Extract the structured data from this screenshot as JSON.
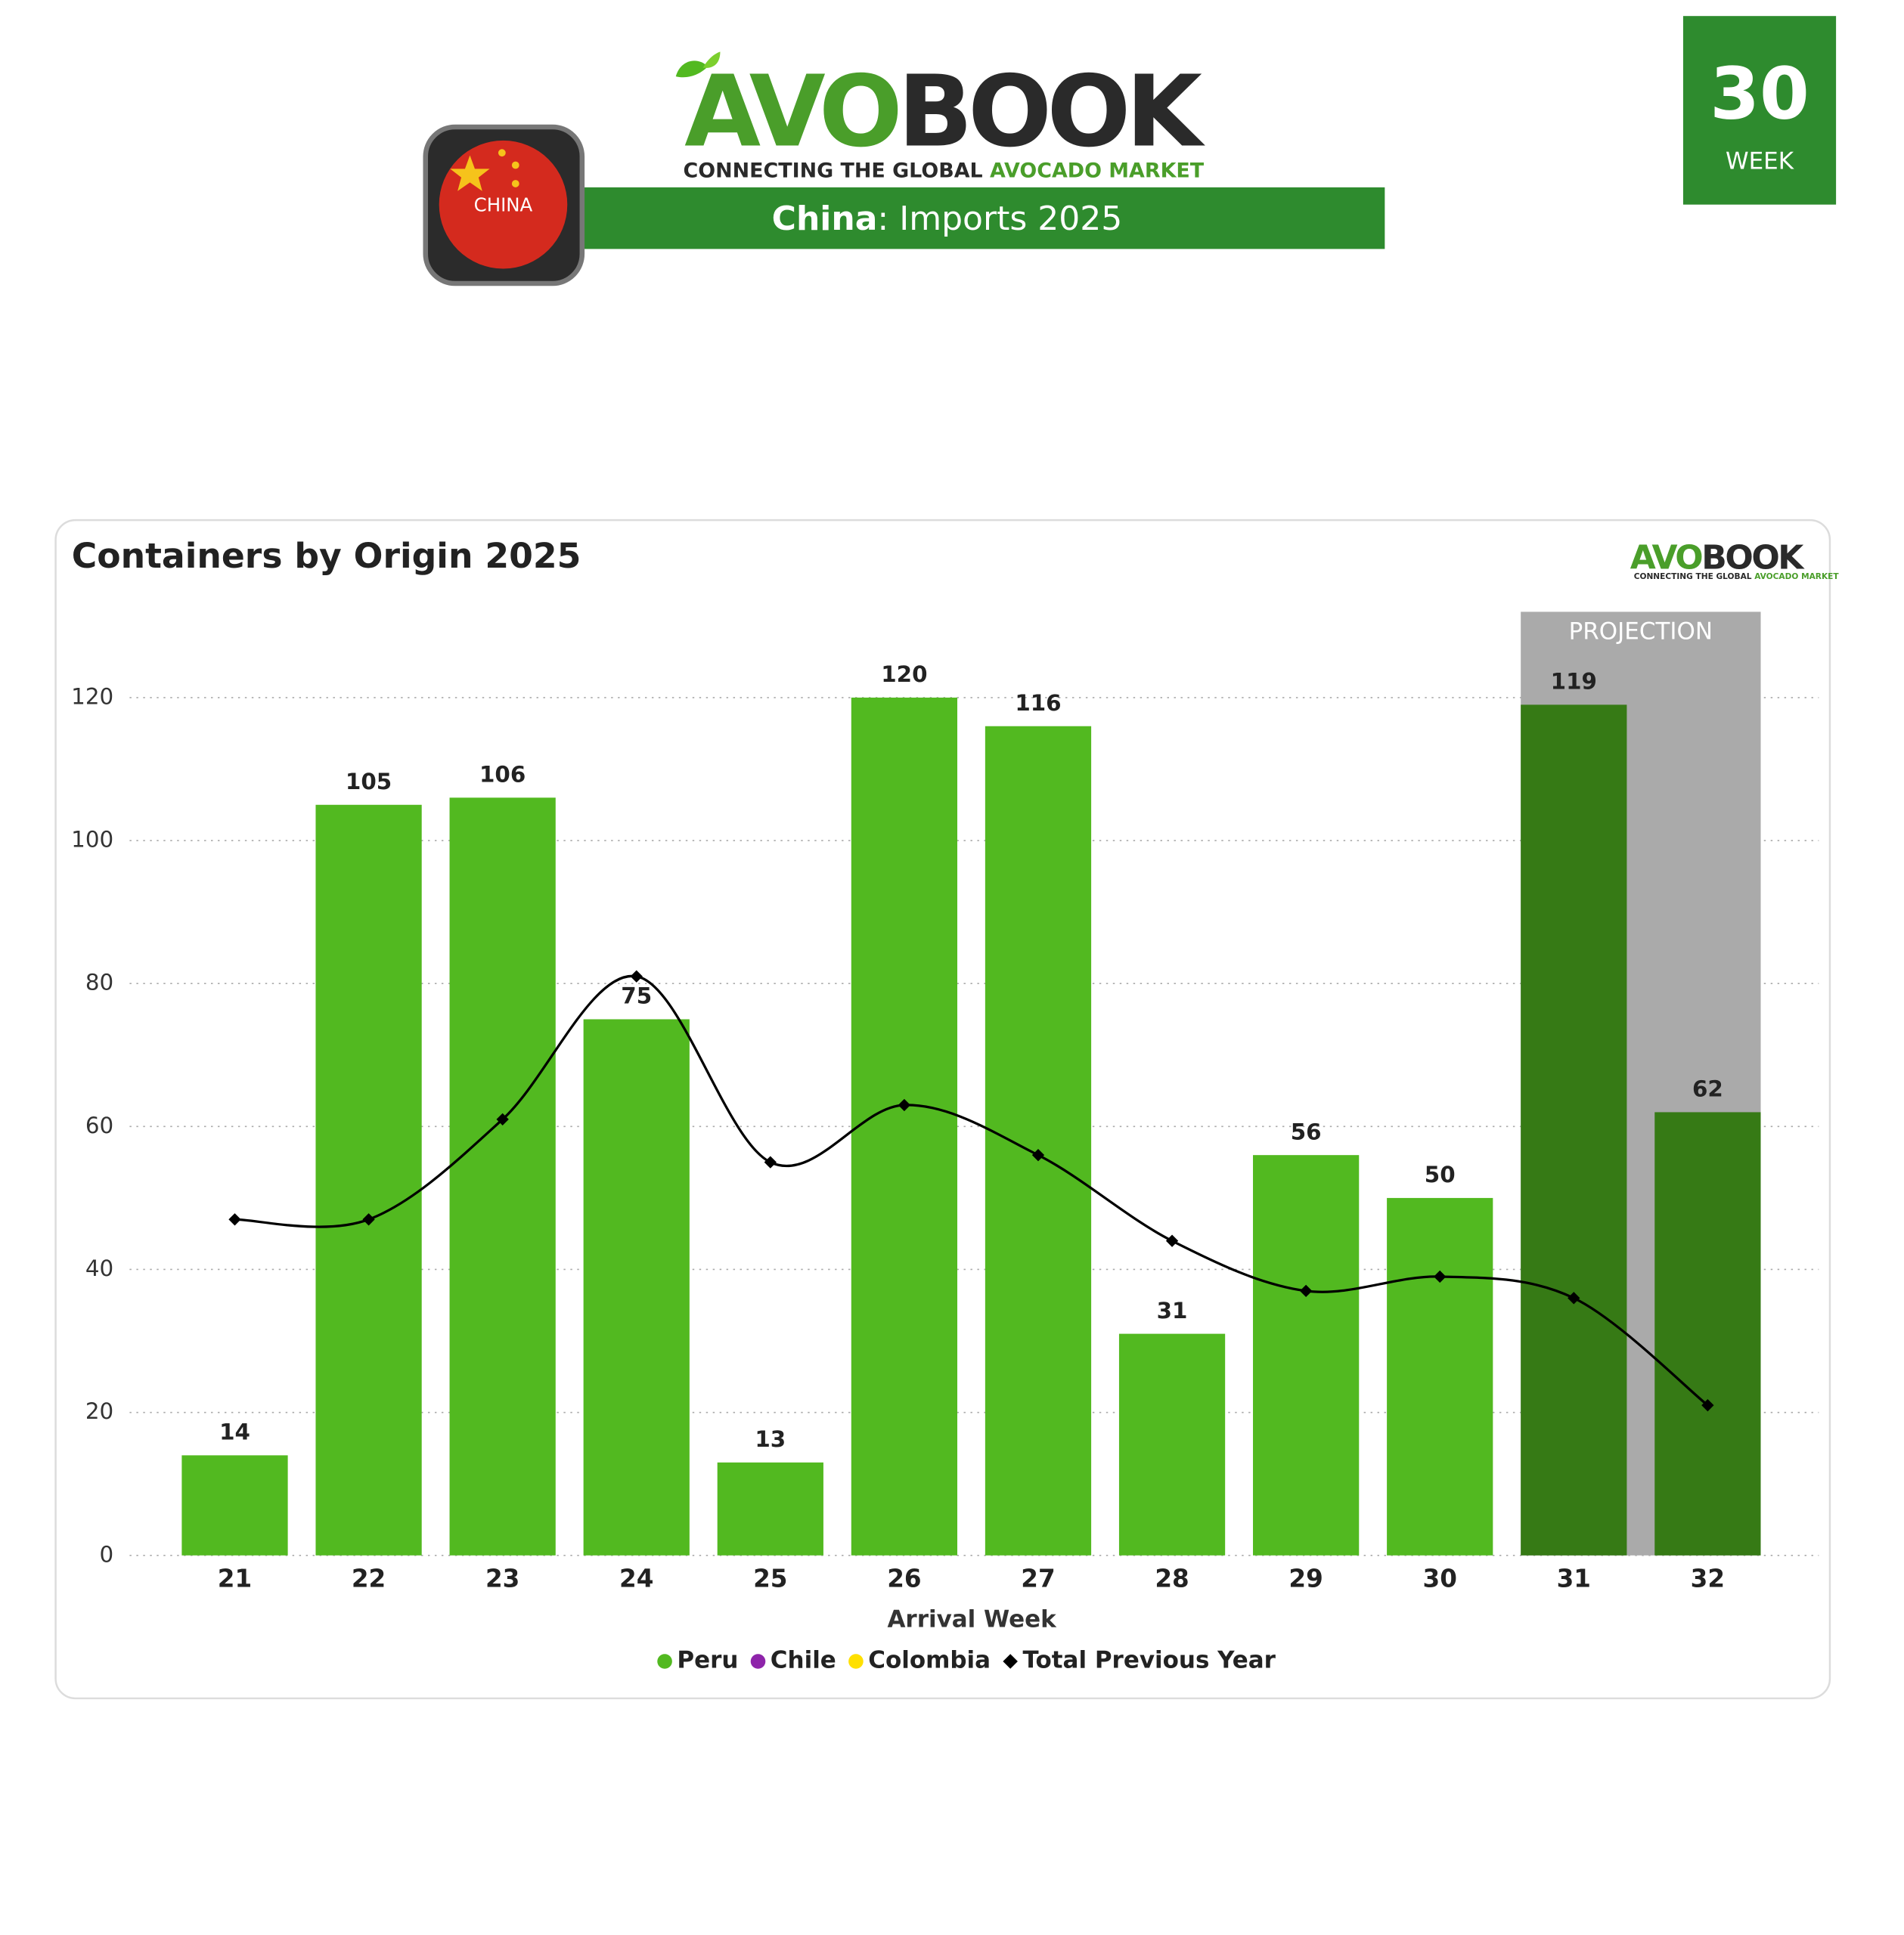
{
  "header": {
    "logo": {
      "part1": "AVO",
      "part2": "BOOK"
    },
    "tagline": {
      "part1": "CONNECTING THE GLOBAL ",
      "part2": "AVOCADO MARKET"
    },
    "banner": {
      "country": "China",
      "rest": ": Imports 2025"
    },
    "flag_label": "CHINA",
    "week": {
      "number": "30",
      "label": "WEEK"
    }
  },
  "chart_data": {
    "type": "bar",
    "title": "Containers by Origin 2025",
    "x_label": "Arrival Week",
    "categories": [
      "21",
      "22",
      "23",
      "24",
      "25",
      "26",
      "27",
      "28",
      "29",
      "30",
      "31",
      "32"
    ],
    "series": [
      {
        "name": "Peru",
        "color": "#52b920",
        "values": [
          14,
          105,
          106,
          75,
          13,
          120,
          116,
          31,
          56,
          50,
          119,
          62
        ]
      },
      {
        "name": "Chile",
        "color": "#8e24aa",
        "values": [
          null,
          null,
          null,
          null,
          null,
          null,
          null,
          null,
          null,
          null,
          null,
          null
        ]
      },
      {
        "name": "Colombia",
        "color": "#ffe000",
        "values": [
          null,
          null,
          null,
          null,
          null,
          null,
          null,
          null,
          null,
          null,
          null,
          null
        ]
      },
      {
        "name": "Total Previous Year",
        "type": "line",
        "color": "#000000",
        "values": [
          47,
          47,
          61,
          81,
          55,
          63,
          56,
          44,
          37,
          39,
          36,
          21
        ]
      }
    ],
    "projection": {
      "label": "PROJECTION",
      "categories": [
        "31",
        "32"
      ],
      "color": "#aaaaaa",
      "bar_color": "#367a15"
    },
    "ylim": [
      0,
      132
    ],
    "yticks": [
      0,
      20,
      40,
      60,
      80,
      100,
      120
    ],
    "grid": true,
    "legend": "bottom"
  }
}
